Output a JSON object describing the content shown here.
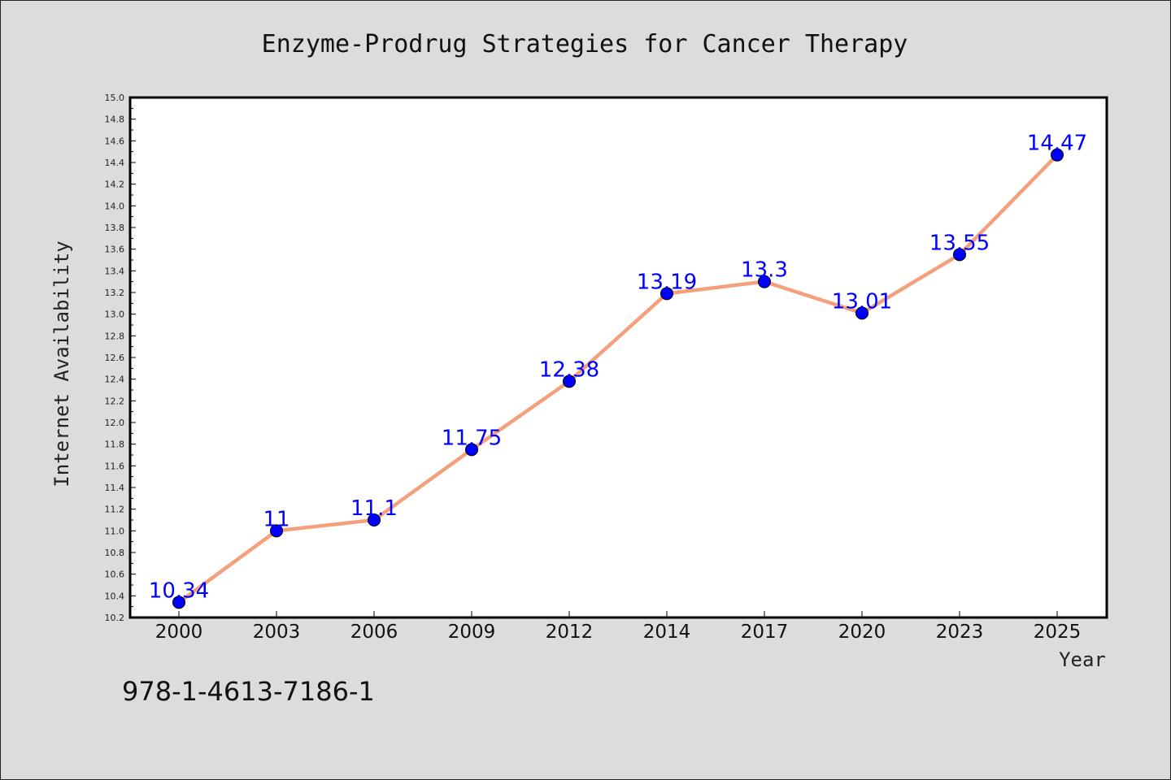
{
  "chart_data": {
    "type": "line",
    "title": "Enzyme-Prodrug Strategies for Cancer Therapy",
    "xlabel": "Year",
    "ylabel": "Internet Availability",
    "categories": [
      "2000",
      "2003",
      "2006",
      "2009",
      "2012",
      "2014",
      "2017",
      "2020",
      "2023",
      "2025"
    ],
    "values": [
      10.34,
      11,
      11.1,
      11.75,
      12.38,
      13.19,
      13.3,
      13.01,
      13.55,
      14.47
    ],
    "value_labels": [
      "10.34",
      "11",
      "11.1",
      "11.75",
      "12.38",
      "13.19",
      "13.3",
      "13.01",
      "13.55",
      "14.47"
    ],
    "ylim": [
      10.2,
      15.0
    ],
    "yticks": [
      "10.2",
      "10.4",
      "10.6",
      "10.8",
      "11.0",
      "11.2",
      "11.4",
      "11.6",
      "11.8",
      "12.0",
      "12.2",
      "12.4",
      "12.6",
      "12.8",
      "13.0",
      "13.2",
      "13.4",
      "13.6",
      "13.8",
      "14.0",
      "14.2",
      "14.4",
      "14.6",
      "14.8",
      "15.0"
    ],
    "grid": false,
    "colors": {
      "line": "#f4a07c",
      "marker": "#0000ff",
      "label": "#0000ff",
      "background": "#dcdcdc",
      "plot_background": "#ffffff"
    }
  },
  "footer": {
    "isbn": "978-1-4613-7186-1"
  }
}
